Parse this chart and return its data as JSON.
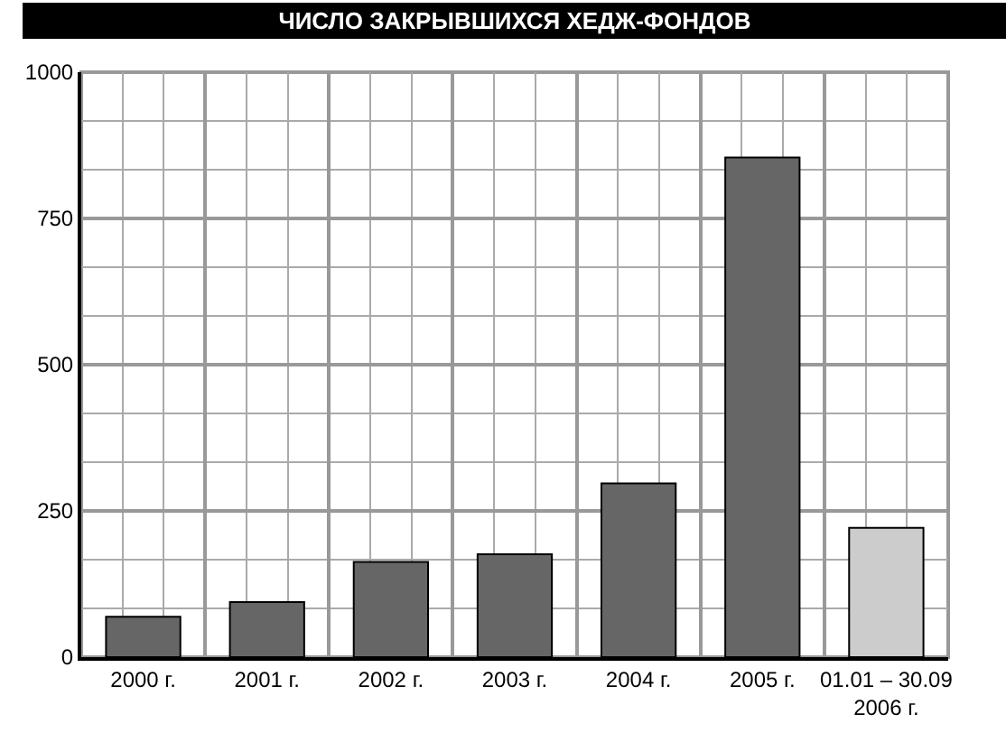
{
  "chart_data": {
    "type": "bar",
    "title": "ЧИСЛО ЗАКРЫВШИХСЯ ХЕДЖ-ФОНДОВ",
    "categories": [
      "2000 г.",
      "2001 г.",
      "2002 г.",
      "2003 г.",
      "2004 г.",
      "2005 г.",
      "01.01 – 30.09\n2006 г."
    ],
    "values": [
      69,
      94,
      163,
      176,
      297,
      854,
      221
    ],
    "colors": [
      "#666666",
      "#666666",
      "#666666",
      "#666666",
      "#666666",
      "#666666",
      "#cccccc"
    ],
    "ylim": [
      0,
      1000
    ],
    "yticks": [
      0,
      250,
      500,
      750,
      1000
    ],
    "grid": true
  }
}
